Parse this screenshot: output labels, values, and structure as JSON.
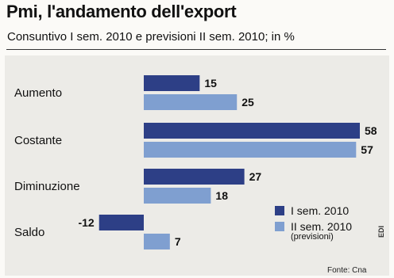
{
  "title": "Pmi, l'andamento dell'export",
  "subtitle": "Consuntivo I sem. 2010 e previsioni II sem. 2010; in %",
  "source": "Fonte: Cna",
  "mark": "EDI",
  "colors": {
    "series1": "#2d3f86",
    "series2": "#7f9fd0"
  },
  "chart_data": {
    "type": "bar",
    "orientation": "horizontal",
    "categories": [
      "Aumento",
      "Costante",
      "Diminuzione",
      "Saldo"
    ],
    "series": [
      {
        "name": "I sem. 2010",
        "values": [
          15,
          58,
          27,
          -12
        ]
      },
      {
        "name": "II sem. 2010",
        "note": "(previsioni)",
        "values": [
          25,
          57,
          18,
          7
        ]
      }
    ],
    "xlim": [
      -12,
      58
    ],
    "grid": false,
    "legend": "bottom-right"
  }
}
